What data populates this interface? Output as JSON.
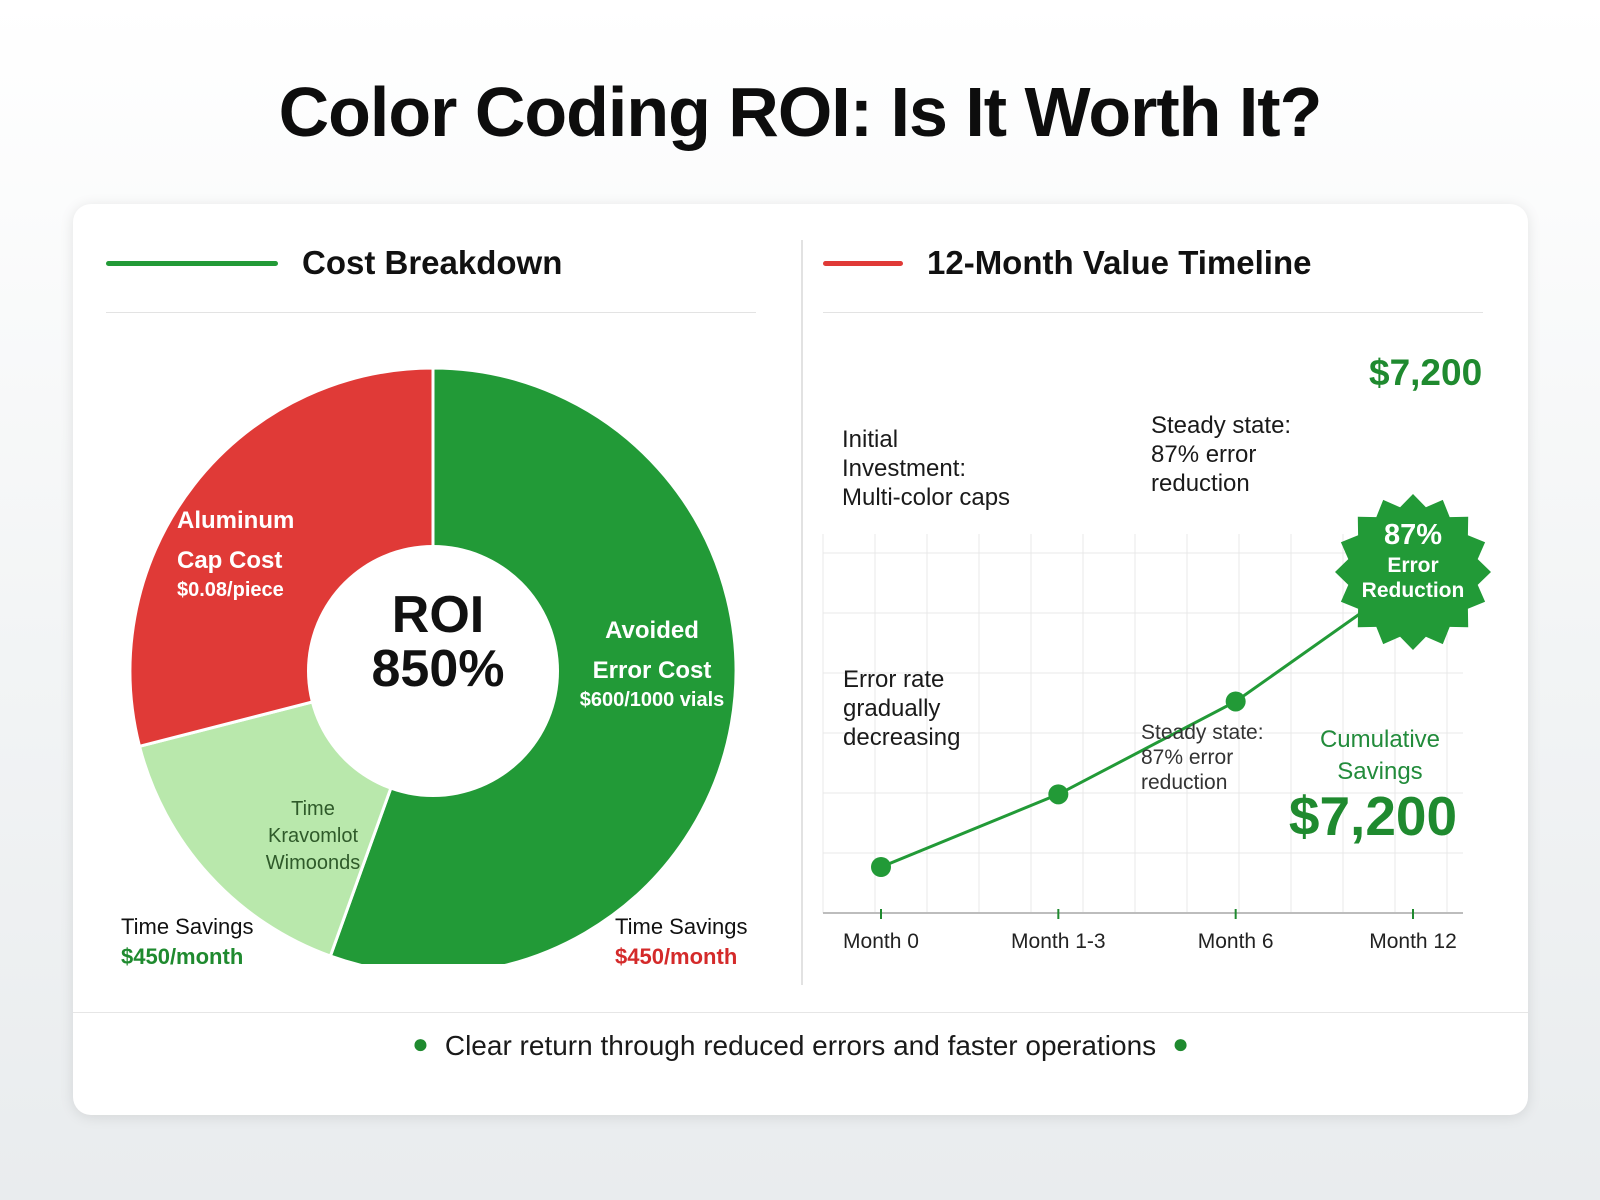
{
  "title": "Color Coding ROI: Is It Worth It?",
  "colors": {
    "green": "#229a37",
    "red": "#e03a37",
    "light_green": "#b9e8ac",
    "dark_green_text": "#1f8a2f",
    "red_text": "#d42a2a"
  },
  "chart_data": [
    {
      "type": "pie",
      "title": "Cost Breakdown",
      "center_label": "ROI\n850%",
      "slices": [
        {
          "label": "Avoided Error Cost",
          "value_label": "$600/1000 vials",
          "share": 0.555,
          "color": "#229a37"
        },
        {
          "label": "Time Kravomlot Wimoonds",
          "value_label": "",
          "share": 0.155,
          "color": "#b9e8ac"
        },
        {
          "label": "Aluminum Cap Cost",
          "value_label": "$0.08/piece",
          "share": 0.29,
          "color": "#e03a37"
        }
      ]
    },
    {
      "type": "line",
      "title": "12-Month Value Timeline",
      "categories": [
        "Month 0",
        "Month 1-3",
        "Month 6",
        "Month 12"
      ],
      "series": [
        {
          "values": [
            0,
            1800,
            4100,
            7200
          ],
          "color": "#229a37"
        }
      ],
      "ylim": [
        0,
        8000
      ],
      "grid": true
    }
  ],
  "pie_panel": {
    "title": "Cost Breakdown",
    "roi_line1": "ROI",
    "roi_line2": "850%",
    "labels": {
      "aluminum": "Aluminum",
      "cap_cost": "Cap Cost",
      "cap_value": "$0.08/piece",
      "avoided": "Avoided",
      "error_cost": "Error Cost",
      "error_value": "$600/1000 vials",
      "time": "Time",
      "time_line2": "Kravomlot",
      "time_line3": "Wimoonds"
    },
    "bottom_left": {
      "label": "Time Savings",
      "value": "$450/month"
    },
    "bottom_right": {
      "label": "Time Savings",
      "value": "$450/month"
    }
  },
  "timeline_panel": {
    "title": "12-Month Value Timeline",
    "note_initial": "Initial\nInvestment:\nMulti-color caps",
    "note_steady_top": "Steady state:\n87% error\nreduction",
    "note_error_rate": "Error rate\ngradually\ndecreasing",
    "note_steady_mid": "Steady state:\n87% error\nreduction",
    "top_value": "$7,200",
    "badge_pct": "87%",
    "badge_line2": "Error",
    "badge_line3": "Reduction",
    "cumulative_label": "Cumulative Savings",
    "cumulative_value": "$7,200"
  },
  "footer": {
    "text": "Clear return through reduced errors and faster operations"
  }
}
